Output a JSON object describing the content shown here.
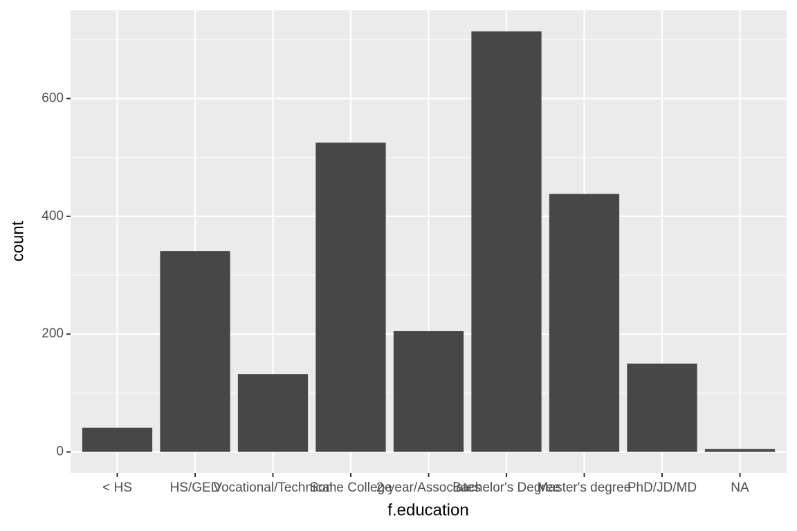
{
  "chart_data": {
    "type": "bar",
    "x_label": "f.education",
    "y_label": "count",
    "categories": [
      "< HS",
      "HS/GED",
      "Vocational/Technical",
      "Some College",
      "2-year/Associates",
      "Bachelor's Degree",
      "Master's degree",
      "PhD/JD/MD",
      "NA"
    ],
    "values": [
      41,
      341,
      132,
      525,
      205,
      714,
      438,
      150,
      5
    ],
    "color": "#474747",
    "ylim": [
      -35.7,
      749.7
    ],
    "yticks": [
      0,
      200,
      400,
      600
    ],
    "minor_yticks": [
      100,
      300,
      500,
      700
    ],
    "grid": true
  }
}
